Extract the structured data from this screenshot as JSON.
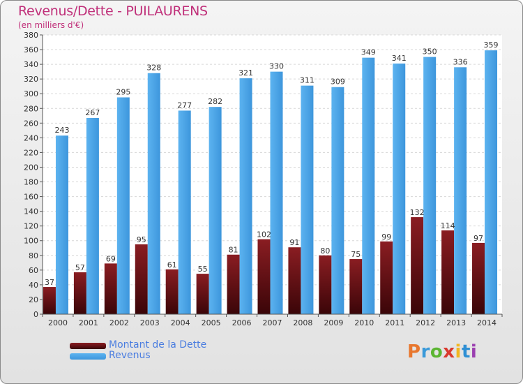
{
  "chart_data": {
    "type": "bar",
    "title": "Revenus/Dette - PUILAURENS",
    "subtitle": "(en milliers d'€)",
    "categories": [
      "2000",
      "2001",
      "2002",
      "2003",
      "2004",
      "2005",
      "2006",
      "2007",
      "2008",
      "2009",
      "2010",
      "2011",
      "2012",
      "2013",
      "2014"
    ],
    "series": [
      {
        "name": "Montant de la Dette",
        "color": "#6e1216",
        "values": [
          37,
          57,
          69,
          95,
          61,
          55,
          81,
          102,
          91,
          80,
          75,
          99,
          132,
          114,
          97
        ]
      },
      {
        "name": "Revenus",
        "color": "#4da6ea",
        "values": [
          243,
          267,
          295,
          328,
          277,
          282,
          321,
          330,
          311,
          309,
          349,
          341,
          350,
          336,
          359
        ]
      }
    ],
    "ylim": [
      0,
      380
    ],
    "ytick_step": 20,
    "yticks": [
      "0",
      "20",
      "40",
      "60",
      "80",
      "100",
      "120",
      "140",
      "160",
      "180",
      "200",
      "220",
      "240",
      "260",
      "280",
      "300",
      "320",
      "340",
      "360",
      "380"
    ],
    "grid": true,
    "legend_position": "bottom-left",
    "xlabel": "",
    "ylabel": ""
  },
  "logo": {
    "text": "Proxiti",
    "colors": [
      "#e8772e",
      "#3a9ad9",
      "#5bb531",
      "#d93a2e",
      "#f2b61f",
      "#2e8fd4",
      "#9b3fb0"
    ]
  }
}
